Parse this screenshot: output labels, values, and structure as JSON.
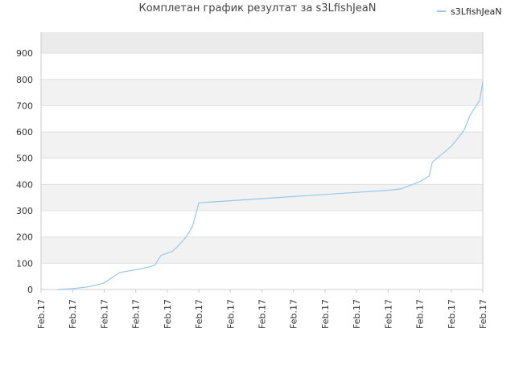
{
  "chart_data": {
    "type": "line",
    "title": "Комплетан график резултат за s3LfishJeaN",
    "xlabel": "",
    "ylabel": "",
    "ylim": [
      0,
      980
    ],
    "yticks": [
      0,
      100,
      200,
      300,
      400,
      500,
      600,
      700,
      800,
      900
    ],
    "xlim": [
      0,
      14
    ],
    "xtick_labels": [
      "Feb.17",
      "Feb.17",
      "Feb.17",
      "Feb.17",
      "Feb.17",
      "Feb.17",
      "Feb.17",
      "Feb.17",
      "Feb.17",
      "Feb.17",
      "Feb.17",
      "Feb.17",
      "Feb.17",
      "Feb.17",
      "Feb.17"
    ],
    "grid": "horizontal alternating bands",
    "legend_position": "top-right",
    "colors": {
      "line": "#95c8ec",
      "band": "#f2f2f2",
      "band_top": "#ebebeb",
      "grid": "#e0e0e0",
      "axis": "#cccccc"
    },
    "series": [
      {
        "name": "s3LfishJeaN",
        "x": [
          0.5,
          1.0,
          1.5,
          1.8,
          2.0,
          2.5,
          3.0,
          3.4,
          3.6,
          3.8,
          4.15,
          4.3,
          4.6,
          4.8,
          5.0,
          6.0,
          7.0,
          8.0,
          9.0,
          10.0,
          11.0,
          11.4,
          12.0,
          12.3,
          12.4,
          12.8,
          13.0,
          13.4,
          13.6,
          13.9,
          14.0
        ],
        "values": [
          0,
          3,
          10,
          18,
          25,
          65,
          75,
          85,
          92,
          130,
          145,
          160,
          200,
          240,
          330,
          338,
          346,
          354,
          362,
          370,
          378,
          383,
          410,
          432,
          485,
          525,
          545,
          605,
          665,
          720,
          790
        ]
      }
    ]
  }
}
